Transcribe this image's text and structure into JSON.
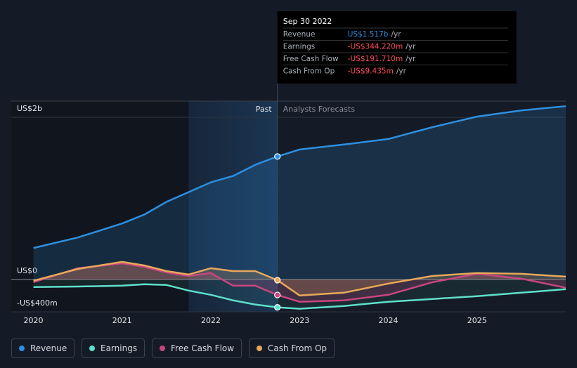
{
  "chart_data": {
    "type": "line",
    "x": [
      2020,
      2020.5,
      2021,
      2021.25,
      2021.5,
      2021.75,
      2022,
      2022.25,
      2022.5,
      2022.75,
      2023,
      2023.5,
      2024,
      2024.5,
      2025,
      2025.5,
      2026
    ],
    "series": [
      {
        "name": "Revenue",
        "color": "#2e8fe0",
        "values": [
          388,
          517,
          690,
          800,
          957,
          1078,
          1198,
          1276,
          1414,
          1517,
          1603,
          1664,
          1733,
          1879,
          2009,
          2086,
          2138
        ]
      },
      {
        "name": "Earnings",
        "color": "#5fe0cc",
        "values": [
          -95,
          -88,
          -78,
          -60,
          -69,
          -138,
          -190,
          -259,
          -310,
          -344.22,
          -362,
          -328,
          -276,
          -241,
          -207,
          -164,
          -121
        ]
      },
      {
        "name": "Free Cash Flow",
        "color": "#c8467f",
        "values": [
          -34,
          138,
          198,
          155,
          86,
          43,
          78,
          -78,
          -78,
          -191.71,
          -276,
          -259,
          -190,
          -34,
          69,
          9,
          -103
        ]
      },
      {
        "name": "Cash From Op",
        "color": "#e8a85a",
        "values": [
          -17,
          129,
          216,
          172,
          103,
          60,
          138,
          103,
          103,
          -9.435,
          -198,
          -164,
          -52,
          43,
          78,
          69,
          34
        ]
      }
    ],
    "xlim": [
      2019.75,
      2026
    ],
    "xticks": [
      2020,
      2021,
      2022,
      2023,
      2024,
      2025
    ],
    "ylim": [
      -400,
      2200
    ],
    "yticks": [
      {
        "value": -400,
        "label": "-US$400m"
      },
      {
        "value": 0,
        "label": "US$0"
      },
      {
        "value": 2000,
        "label": "US$2b"
      }
    ],
    "forecast_start": 2022.75,
    "shade_start": 2021.75,
    "past_label": "Past",
    "forecast_label": "Analysts Forecasts",
    "tooltip": {
      "date": "Sep 30 2022",
      "rows": [
        {
          "label": "Revenue",
          "value": "US$1.517b",
          "unit": "/yr"
        },
        {
          "label": "Earnings",
          "value": "-US$344.220m",
          "unit": "/yr"
        },
        {
          "label": "Free Cash Flow",
          "value": "-US$191.710m",
          "unit": "/yr"
        },
        {
          "label": "Cash From Op",
          "value": "-US$9.435m",
          "unit": "/yr"
        }
      ]
    }
  }
}
